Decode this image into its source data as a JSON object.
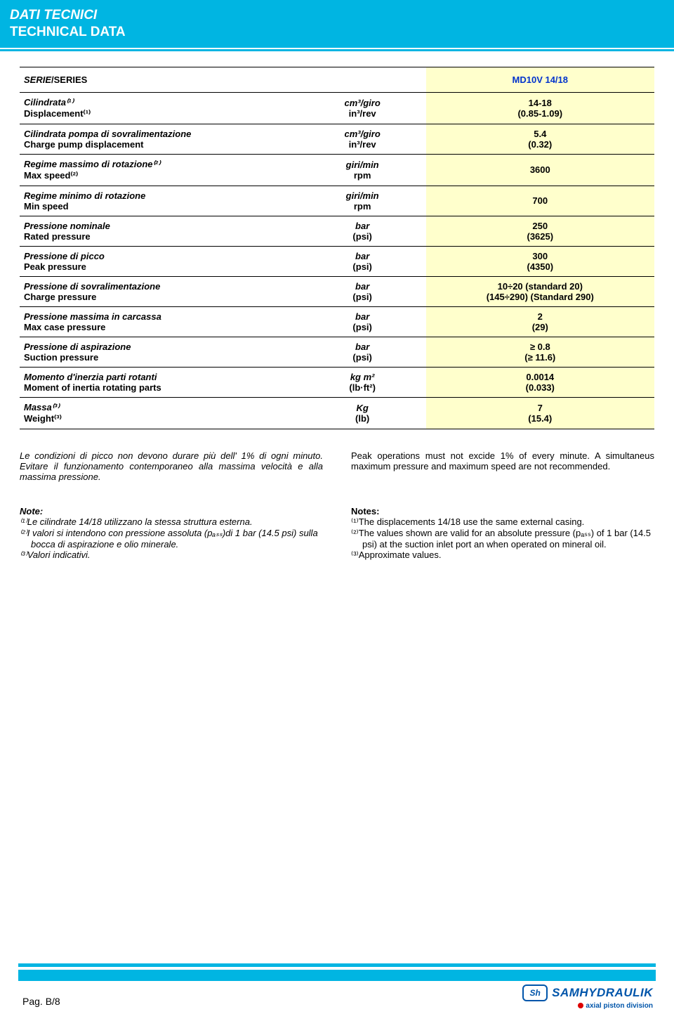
{
  "header": {
    "title_it": "DATI TECNICI",
    "title_en": "TECHNICAL DATA"
  },
  "table": {
    "series_label_it": "SERIE",
    "series_label_en": "/SERIES",
    "series_value": "MD10V 14/18",
    "rows": [
      {
        "it": "Cilindrata⁽¹⁾",
        "en": "Displacement⁽¹⁾",
        "unit_it": "cm³/giro",
        "unit_en": "in³/rev",
        "val1": "14-18",
        "val2": "(0.85-1.09)"
      },
      {
        "it": "Cilindrata pompa di sovralimentazione",
        "en": "Charge pump displacement",
        "unit_it": "cm³/giro",
        "unit_en": "in³/rev",
        "val1": "5.4",
        "val2": "(0.32)"
      },
      {
        "it": "Regime massimo di rotazione⁽²⁾",
        "en": "Max speed⁽²⁾",
        "unit_it": "giri/min",
        "unit_en": "rpm",
        "val1": "3600",
        "val2": ""
      },
      {
        "it": "Regime minimo di rotazione",
        "en": "Min speed",
        "unit_it": "giri/min",
        "unit_en": "rpm",
        "val1": "700",
        "val2": ""
      },
      {
        "it": "Pressione nominale",
        "en": "Rated pressure",
        "unit_it": "bar",
        "unit_en": "(psi)",
        "val1": "250",
        "val2": "(3625)"
      },
      {
        "it": "Pressione di picco",
        "en": "Peak pressure",
        "unit_it": "bar",
        "unit_en": "(psi)",
        "val1": "300",
        "val2": "(4350)"
      },
      {
        "it": "Pressione di sovralimentazione",
        "en": "Charge pressure",
        "unit_it": "bar",
        "unit_en": "(psi)",
        "val1": "10÷20 (standard 20)",
        "val2": "(145÷290) (Standard 290)"
      },
      {
        "it": "Pressione massima in carcassa",
        "en": "Max case pressure",
        "unit_it": "bar",
        "unit_en": "(psi)",
        "val1": "2",
        "val2": "(29)"
      },
      {
        "it": "Pressione di aspirazione",
        "en": "Suction pressure",
        "unit_it": "bar",
        "unit_en": "(psi)",
        "val1": "≥ 0.8",
        "val2": "(≥ 11.6)"
      },
      {
        "it": "Momento d'inerzia parti rotanti",
        "en": "Moment of inertia rotating parts",
        "unit_it": "kg m²",
        "unit_en": "(lb·ft²)",
        "val1": "0.0014",
        "val2": "(0.033)"
      },
      {
        "it": "Massa⁽³⁾",
        "en": "Weight⁽³⁾",
        "unit_it": "Kg",
        "unit_en": "(lb)",
        "val1": "7",
        "val2": "(15.4)"
      }
    ]
  },
  "para": {
    "it": "Le condizioni di picco non devono durare più dell' 1% di ogni minuto. Evitare il funzionamento contemporaneo alla massima velocità e alla massima pressione.",
    "en": "Peak operations must not excide 1% of every minute. A simultaneus maximum pressure and maximum speed are not recommended."
  },
  "notes": {
    "head_it": "Note:",
    "it1": "⁽¹⁾Le cilindrate 14/18 utilizzano la stessa struttura esterna.",
    "it2": "⁽²⁾I valori si intendono con pressione assoluta (pₐₛₛ)di 1 bar (14.5 psi) sulla bocca di aspirazione e olio minerale.",
    "it3": "⁽³⁾Valori indicativi.",
    "head_en": "Notes:",
    "en1": "⁽¹⁾The displacements 14/18 use the same external casing.",
    "en2": "⁽²⁾The values shown are valid for an absolute pressure (pₐₛₛ) of 1 bar (14.5 psi) at the suction inlet port an when operated on mineral oil.",
    "en3": "⁽³⁾Approximate values."
  },
  "footer": {
    "page": "Pag. B/8",
    "logo_name": "SAMHYDRAULIK",
    "logo_sub": "axial piston division",
    "logo_mark": "Sh"
  },
  "colors": {
    "brand_cyan": "#00b5e2",
    "value_bg": "#ffffcc",
    "value_text": "#0033cc",
    "logo_blue": "#0055aa"
  }
}
